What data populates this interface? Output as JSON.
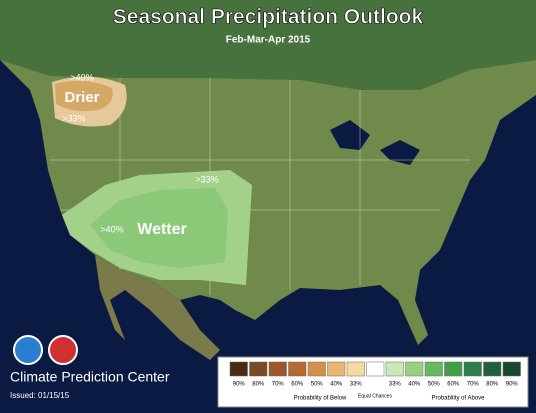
{
  "title": "Seasonal Precipitation Outlook",
  "subtitle": "Feb-Mar-Apr 2015",
  "regions": {
    "drier": {
      "outer": ">33%",
      "inner": ">40%",
      "label": "Drier",
      "color_outer": "#e6c99a",
      "color_inner": "#d6a866"
    },
    "wetter": {
      "outer": ">33%",
      "inner": ">40%",
      "label": "Wetter",
      "color_outer": "#a8d890",
      "color_inner": "#88c878"
    }
  },
  "footer": {
    "agency": "Climate Prediction Center",
    "issued": "Issued: 01/15/15"
  },
  "legend": {
    "swatches": [
      {
        "color": "#4a2a10",
        "label": "90%"
      },
      {
        "color": "#7a4a20",
        "label": "80%"
      },
      {
        "color": "#9a5a2a",
        "label": "70%"
      },
      {
        "color": "#b46a30",
        "label": "60%"
      },
      {
        "color": "#d4904a",
        "label": "50%"
      },
      {
        "color": "#e8b870",
        "label": "40%"
      },
      {
        "color": "#f4dca0",
        "label": "33%"
      },
      {
        "color": "#ffffff"
      },
      {
        "color": "#c8e8b8",
        "label": "33%"
      },
      {
        "color": "#98d080",
        "label": "40%"
      },
      {
        "color": "#68b860",
        "label": "50%"
      },
      {
        "color": "#40a048",
        "label": "60%"
      },
      {
        "color": "#2a8048",
        "label": "70%"
      },
      {
        "color": "#206040",
        "label": "80%"
      },
      {
        "color": "#184830",
        "label": "90%"
      }
    ],
    "below": "Probability of Below",
    "equal": "Equal Chances",
    "above": "Probability of Above"
  }
}
